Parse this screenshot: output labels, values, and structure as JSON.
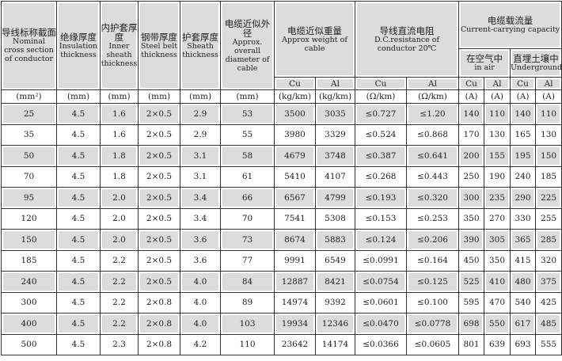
{
  "headers": {
    "section": {
      "zh": "导线标称截面",
      "en": "Nominal cross section of conductor"
    },
    "insulation": {
      "zh": "绝缘厚度",
      "en": "Insulation thickness"
    },
    "inner_sheath": {
      "zh": "内护套厚度",
      "en": "Inner sheath thickness"
    },
    "steel_belt": {
      "zh": "钢带厚度",
      "en": "Steel belt thickness"
    },
    "sheath": {
      "zh": "护套厚度",
      "en": "Sheath thickness"
    },
    "diameter": {
      "zh": "电缆近似外径",
      "en": "Approx. overall diameter of cable"
    },
    "weight": {
      "zh": "电缆近似重量",
      "en": "Approx weight of cable"
    },
    "resistance": {
      "zh": "导线直流电阻",
      "en": "D.C.resistance of conductor 20℃"
    },
    "current": {
      "zh": "电缆载流量",
      "en": "Current-carrying capacity"
    },
    "in_air": {
      "zh": "在空气中",
      "en": "in air"
    },
    "underground": {
      "zh": "直埋土壤中",
      "en": "Underground"
    },
    "cu": "Cu",
    "al": "Al"
  },
  "units": [
    "(mm²)",
    "(mm)",
    "(mm)",
    "(mm)",
    "(mm)",
    "(mm)",
    "(kg/km)",
    "(kg/km)",
    "(Ω/km)",
    "(Ω/km)",
    "(A)",
    "(A)",
    "(A)",
    "(A)"
  ],
  "rows": [
    [
      "25",
      "4.5",
      "1.6",
      "2×0.5",
      "2.9",
      "53",
      "3500",
      "3035",
      "≤0.727",
      "≤1.20",
      "140",
      "110",
      "140",
      "110"
    ],
    [
      "35",
      "4.5",
      "1.6",
      "2×0.5",
      "2.9",
      "55",
      "3980",
      "3329",
      "≤0.524",
      "≤0.868",
      "170",
      "130",
      "165",
      "130"
    ],
    [
      "50",
      "4.5",
      "1.8",
      "2×0.5",
      "3.1",
      "58",
      "4679",
      "3748",
      "≤0.387",
      "≤0.641",
      "200",
      "155",
      "195",
      "150"
    ],
    [
      "70",
      "4.5",
      "1.8",
      "2×0.5",
      "3.1",
      "61",
      "5410",
      "4107",
      "≤0.268",
      "≤0.443",
      "250",
      "190",
      "240",
      "185"
    ],
    [
      "95",
      "4.5",
      "2.0",
      "2×0.5",
      "3.4",
      "66",
      "6567",
      "4799",
      "≤0.193",
      "≤0.320",
      "300",
      "235",
      "290",
      "225"
    ],
    [
      "120",
      "4.5",
      "2.0",
      "2×0.5",
      "3.4",
      "70",
      "7541",
      "5308",
      "≤0.153",
      "≤0.253",
      "350",
      "270",
      "330",
      "255"
    ],
    [
      "150",
      "4.5",
      "2.0",
      "2×0.5",
      "3.6",
      "73",
      "8674",
      "5883",
      "≤0.124",
      "≤0.206",
      "390",
      "305",
      "365",
      "285"
    ],
    [
      "185",
      "4.5",
      "2.2",
      "2×0.5",
      "3.6",
      "77",
      "9991",
      "6549",
      "≤0.0991",
      "≤0.164",
      "450",
      "350",
      "415",
      "320"
    ],
    [
      "240",
      "4.5",
      "2.2",
      "2×0.5",
      "4.0",
      "84",
      "12887",
      "8421",
      "≤0.0754",
      "≤0.125",
      "525",
      "410",
      "480",
      "375"
    ],
    [
      "300",
      "4.5",
      "2.2",
      "2×0.8",
      "4.0",
      "89",
      "14974",
      "9392",
      "≤0.0601",
      "≤0.100",
      "595",
      "470",
      "540",
      "425"
    ],
    [
      "400",
      "4.5",
      "2.2",
      "2×0.8",
      "4.0",
      "103",
      "19934",
      "12346",
      "≤0.0470",
      "≤0.0778",
      "698",
      "550",
      "617",
      "485"
    ],
    [
      "500",
      "4.5",
      "2.3",
      "2×0.8",
      "4.2",
      "110",
      "23642",
      "14174",
      "≤0.0366",
      "≤0.0605",
      "801",
      "639",
      "693",
      "555"
    ]
  ],
  "colors": {
    "shade": "#dcdcdc",
    "border": "#333333"
  }
}
